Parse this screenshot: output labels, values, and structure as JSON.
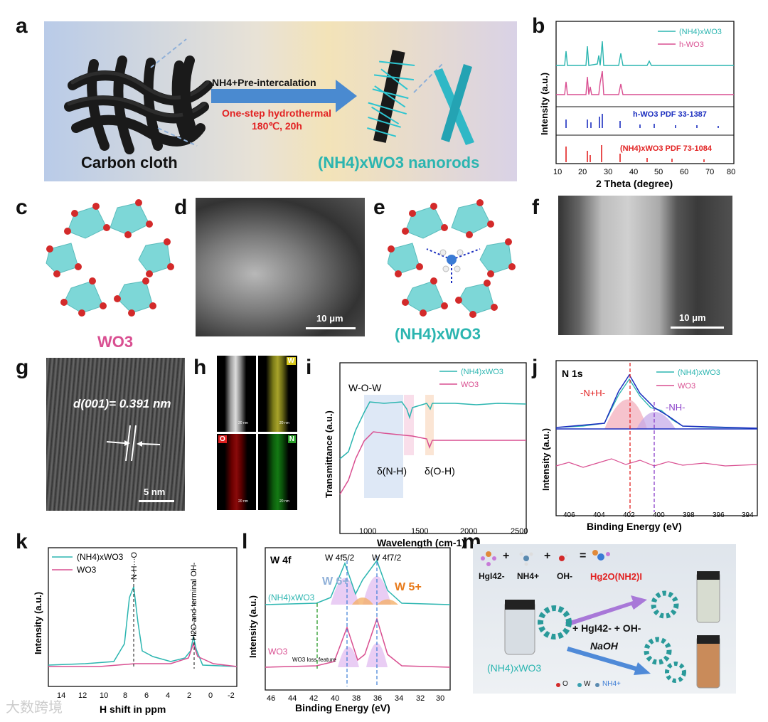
{
  "panels": {
    "a": {
      "label": "a",
      "step1": "NH4+Pre-intercalation",
      "step2": "One-step hydrothermal",
      "step3": "180℃, 20h",
      "left": "Carbon cloth",
      "right": "(NH4)xWO3 nanorods"
    },
    "b": {
      "label": "b",
      "ylabel": "Intensity (a.u.)",
      "xlabel": "2 Theta (degree)",
      "legend1": "(NH4)xWO3",
      "legend2": "h-WO3",
      "ref1": "h-WO3 PDF 33-1387",
      "ref2": "(NH4)xWO3 PDF 73-1084",
      "ticks": [
        "10",
        "20",
        "30",
        "40",
        "50",
        "60",
        "70",
        "80"
      ]
    },
    "c": {
      "label": "c",
      "caption": "WO3"
    },
    "d": {
      "label": "d",
      "scale": "10 μm"
    },
    "e": {
      "label": "e",
      "caption": "(NH4)xWO3"
    },
    "f": {
      "label": "f",
      "scale": "10 μm"
    },
    "g": {
      "label": "g",
      "dspacing": "d(001)= 0.391 nm",
      "scale": "5 nm"
    },
    "h": {
      "label": "h",
      "W": "W",
      "O": "O",
      "N": "N",
      "scale": "20 nm"
    },
    "i": {
      "label": "i",
      "ylabel": "Transmittance (a.u.)",
      "xlabel": "Wavelength (cm-1)",
      "wow": "W-O-W",
      "nh": "δ(N-H)",
      "oh": "δ(O-H)",
      "legend1": "(NH4)xWO3",
      "legend2": "WO3",
      "ticks": [
        "1000",
        "1500",
        "2000",
        "2500"
      ]
    },
    "j": {
      "label": "j",
      "title": "N 1s",
      "ylabel": "Intensity (a.u.)",
      "xlabel": "Binding Energy (eV)",
      "peak1": "-N+H-",
      "peak2": "-NH-",
      "legend1": "(NH4)xWO3",
      "legend2": "WO3",
      "ticks": [
        "406",
        "404",
        "402",
        "400",
        "398",
        "396",
        "394"
      ]
    },
    "k": {
      "label": "k",
      "ylabel": "Intensity (a.u.)",
      "xlabel": "H shift in ppm",
      "ann1": "N-H···O",
      "ann2": "H2O and terminal OH-",
      "legend1": "(NH4)xWO3",
      "legend2": "WO3",
      "ticks": [
        "14",
        "12",
        "10",
        "8",
        "6",
        "4",
        "2",
        "0",
        "-2"
      ]
    },
    "l": {
      "label": "l",
      "title": "W 4f",
      "ylabel": "Intensity (a.u.)",
      "xlabel": "Binding Energy (eV)",
      "w52": "W 4f5/2",
      "w72": "W 4f7/2",
      "w6": "W 6+",
      "w5": "W 5+",
      "loss": "WO3 loss feature",
      "s1": "(NH4)xWO3",
      "s2": "WO3",
      "ticks": [
        "46",
        "44",
        "42",
        "40",
        "38",
        "36",
        "34",
        "32",
        "30"
      ]
    },
    "m": {
      "label": "m",
      "hgi": "HgI42-",
      "nh4": "NH4+",
      "oh": "OH-",
      "product": "Hg2O(NH2)I",
      "reagents": "+ HgI42- + OH-",
      "naoh": "NaOH",
      "sample": "(NH4)xWO3",
      "lo": "O",
      "lw": "W",
      "lnh4": "NH4+"
    }
  },
  "watermark": "大数跨境",
  "colors": {
    "teal": "#2bb5b0",
    "pink": "#d94f91",
    "blue": "#1a2dbf",
    "red": "#e22222",
    "orange": "#e87a1a",
    "purple": "#8a3fc9"
  }
}
